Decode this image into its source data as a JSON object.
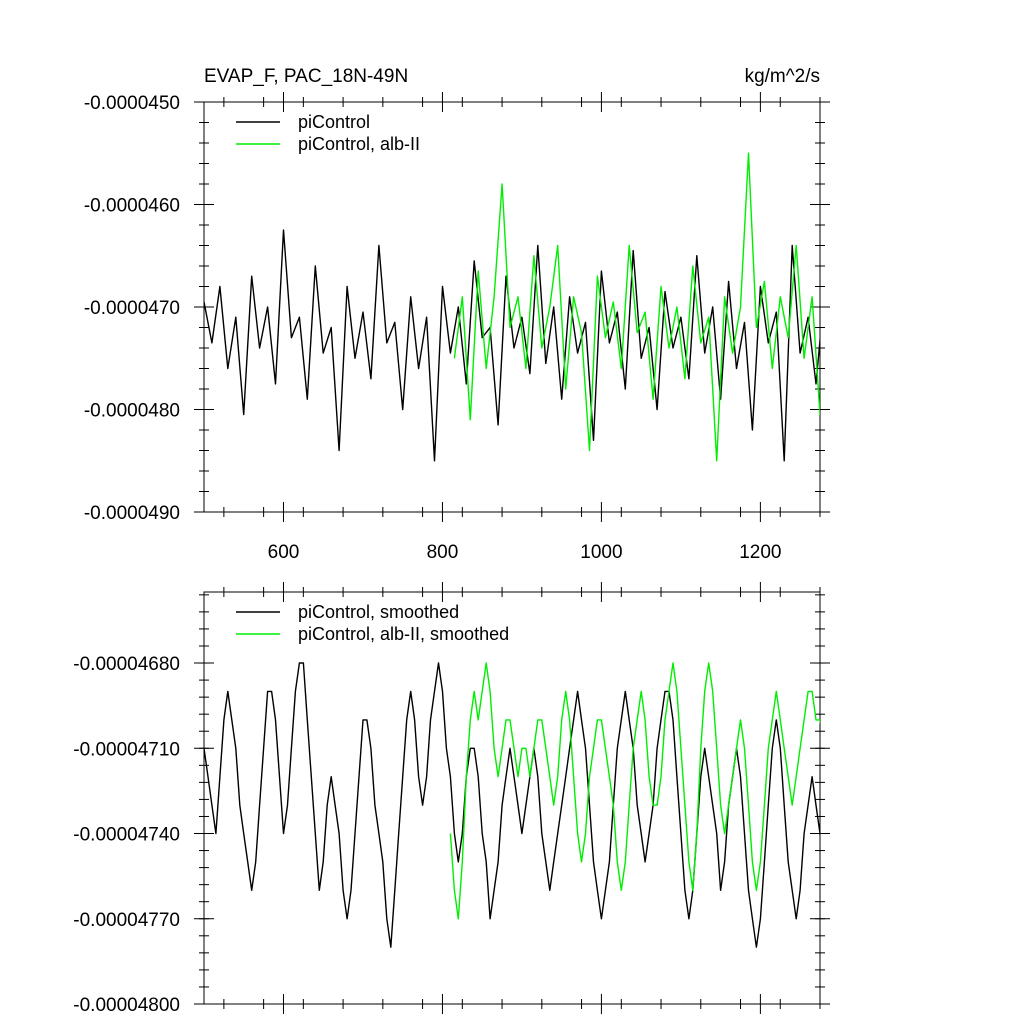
{
  "chart_data": [
    {
      "type": "line",
      "title": "EVAP_F, PAC_18N-49N",
      "units": "kg/m^2/s",
      "xlim": [
        500,
        1275
      ],
      "ylim": [
        -4.9e-05,
        -4.5e-05
      ],
      "x_ticks": [
        600,
        800,
        1000,
        1200
      ],
      "x_tick_labels": [
        "600",
        "800",
        "1000",
        "1200"
      ],
      "y_ticks": [
        -4.5e-05,
        -4.6e-05,
        -4.7e-05,
        -4.8e-05,
        -4.9e-05
      ],
      "y_tick_labels": [
        "-0.0000450",
        "-0.0000460",
        "-0.0000470",
        "-0.0000480",
        "-0.0000490"
      ],
      "legend_position": "top-left",
      "colors": {
        "piControl": "#000000",
        "alb": "#00ee00"
      },
      "series": [
        {
          "name": "piControl",
          "color": "#000000",
          "x_start": 500,
          "x_step": 10,
          "values": [
            -4.695e-05,
            -4.735e-05,
            -4.68e-05,
            -4.76e-05,
            -4.71e-05,
            -4.805e-05,
            -4.67e-05,
            -4.74e-05,
            -4.7e-05,
            -4.775e-05,
            -4.625e-05,
            -4.73e-05,
            -4.71e-05,
            -4.79e-05,
            -4.66e-05,
            -4.745e-05,
            -4.72e-05,
            -4.84e-05,
            -4.68e-05,
            -4.75e-05,
            -4.705e-05,
            -4.77e-05,
            -4.64e-05,
            -4.735e-05,
            -4.715e-05,
            -4.8e-05,
            -4.69e-05,
            -4.76e-05,
            -4.71e-05,
            -4.85e-05,
            -4.68e-05,
            -4.745e-05,
            -4.7e-05,
            -4.775e-05,
            -4.655e-05,
            -4.73e-05,
            -4.72e-05,
            -4.815e-05,
            -4.67e-05,
            -4.74e-05,
            -4.71e-05,
            -4.765e-05,
            -4.64e-05,
            -4.755e-05,
            -4.7e-05,
            -4.79e-05,
            -4.69e-05,
            -4.745e-05,
            -4.715e-05,
            -4.83e-05,
            -4.665e-05,
            -4.735e-05,
            -4.705e-05,
            -4.78e-05,
            -4.645e-05,
            -4.75e-05,
            -4.72e-05,
            -4.8e-05,
            -4.685e-05,
            -4.74e-05,
            -4.71e-05,
            -4.77e-05,
            -4.65e-05,
            -4.745e-05,
            -4.7e-05,
            -4.79e-05,
            -4.675e-05,
            -4.76e-05,
            -4.715e-05,
            -4.82e-05,
            -4.68e-05,
            -4.735e-05,
            -4.705e-05,
            -4.85e-05,
            -4.64e-05,
            -4.745e-05,
            -4.71e-05,
            -4.775e-05,
            -4.69e-05,
            -4.76e-05
          ]
        },
        {
          "name": "piControl, alb-II",
          "color": "#00ee00",
          "x_start": 815,
          "x_step": 10,
          "values": [
            -4.75e-05,
            -4.69e-05,
            -4.81e-05,
            -4.665e-05,
            -4.76e-05,
            -4.69e-05,
            -4.58e-05,
            -4.72e-05,
            -4.69e-05,
            -4.76e-05,
            -4.65e-05,
            -4.74e-05,
            -4.7e-05,
            -4.64e-05,
            -4.78e-05,
            -4.69e-05,
            -4.725e-05,
            -4.84e-05,
            -4.67e-05,
            -4.73e-05,
            -4.695e-05,
            -4.76e-05,
            -4.64e-05,
            -4.725e-05,
            -4.705e-05,
            -4.79e-05,
            -4.68e-05,
            -4.74e-05,
            -4.7e-05,
            -4.77e-05,
            -4.66e-05,
            -4.735e-05,
            -4.71e-05,
            -4.85e-05,
            -4.69e-05,
            -4.745e-05,
            -4.7e-05,
            -4.55e-05,
            -4.72e-05,
            -4.675e-05,
            -4.76e-05,
            -4.69e-05,
            -4.73e-05,
            -4.64e-05,
            -4.75e-05,
            -4.69e-05,
            -4.805e-05,
            -4.66e-05,
            -4.735e-05,
            -4.7e-05,
            -4.77e-05,
            -4.65e-05,
            -4.745e-05,
            -4.695e-05,
            -4.78e-05,
            -4.68e-05,
            -4.73e-05,
            -4.6e-05,
            -4.74e-05,
            -4.705e-05,
            -4.79e-05,
            -4.66e-05,
            -4.73e-05,
            -4.7e-05,
            -4.765e-05,
            -4.615e-05,
            -4.74e-05,
            -4.69e-05,
            -4.775e-05,
            -4.68e-05,
            -4.725e-05,
            -4.585e-05,
            -4.735e-05,
            -4.69e-05,
            -4.77e-05,
            -4.7e-05,
            -4.72e-05,
            -4.645e-05,
            -4.755e-05,
            -4.7e-05,
            -4.785e-05,
            -4.68e-05,
            -4.735e-05,
            -4.7e-05,
            -4.76e-05,
            -4.69e-05,
            -4.73e-05
          ]
        }
      ]
    },
    {
      "type": "line",
      "title": "",
      "xlim": [
        500,
        1275
      ],
      "ylim": [
        -4.8e-05,
        -4.655e-05
      ],
      "x_ticks": [
        600,
        800,
        1000,
        1200
      ],
      "y_ticks": [
        -4.68e-05,
        -4.71e-05,
        -4.74e-05,
        -4.77e-05,
        -4.8e-05
      ],
      "y_tick_labels": [
        "-0.00004680",
        "-0.00004710",
        "-0.00004740",
        "-0.00004770",
        "-0.00004800"
      ],
      "legend_position": "top-left",
      "series": [
        {
          "name": "piControl, smoothed",
          "color": "#000000",
          "x_start": 500,
          "x_step": 5,
          "values": [
            -4.71e-05,
            -4.72e-05,
            -4.73e-05,
            -4.74e-05,
            -4.72e-05,
            -4.7e-05,
            -4.69e-05,
            -4.7e-05,
            -4.71e-05,
            -4.73e-05,
            -4.74e-05,
            -4.75e-05,
            -4.76e-05,
            -4.75e-05,
            -4.73e-05,
            -4.71e-05,
            -4.69e-05,
            -4.69e-05,
            -4.7e-05,
            -4.72e-05,
            -4.74e-05,
            -4.73e-05,
            -4.71e-05,
            -4.69e-05,
            -4.68e-05,
            -4.68e-05,
            -4.7e-05,
            -4.72e-05,
            -4.74e-05,
            -4.76e-05,
            -4.75e-05,
            -4.73e-05,
            -4.72e-05,
            -4.73e-05,
            -4.74e-05,
            -4.76e-05,
            -4.77e-05,
            -4.76e-05,
            -4.74e-05,
            -4.72e-05,
            -4.7e-05,
            -4.7e-05,
            -4.71e-05,
            -4.73e-05,
            -4.74e-05,
            -4.75e-05,
            -4.77e-05,
            -4.78e-05,
            -4.76e-05,
            -4.74e-05,
            -4.72e-05,
            -4.7e-05,
            -4.69e-05,
            -4.7e-05,
            -4.72e-05,
            -4.73e-05,
            -4.72e-05,
            -4.7e-05,
            -4.69e-05,
            -4.68e-05,
            -4.69e-05,
            -4.71e-05,
            -4.72e-05,
            -4.74e-05,
            -4.75e-05,
            -4.74e-05,
            -4.72e-05,
            -4.71e-05,
            -4.71e-05,
            -4.72e-05,
            -4.74e-05,
            -4.75e-05,
            -4.77e-05,
            -4.76e-05,
            -4.75e-05,
            -4.73e-05,
            -4.72e-05,
            -4.71e-05,
            -4.72e-05,
            -4.73e-05,
            -4.74e-05,
            -4.73e-05,
            -4.72e-05,
            -4.71e-05,
            -4.72e-05,
            -4.74e-05,
            -4.75e-05,
            -4.76e-05,
            -4.75e-05,
            -4.74e-05,
            -4.73e-05,
            -4.72e-05,
            -4.71e-05,
            -4.7e-05,
            -4.69e-05,
            -4.7e-05,
            -4.71e-05,
            -4.73e-05,
            -4.75e-05,
            -4.76e-05,
            -4.77e-05,
            -4.76e-05,
            -4.75e-05,
            -4.73e-05,
            -4.71e-05,
            -4.7e-05,
            -4.69e-05,
            -4.7e-05,
            -4.71e-05,
            -4.73e-05,
            -4.74e-05,
            -4.75e-05,
            -4.74e-05,
            -4.73e-05,
            -4.71e-05,
            -4.7e-05,
            -4.69e-05,
            -4.69e-05,
            -4.7e-05,
            -4.72e-05,
            -4.74e-05,
            -4.76e-05,
            -4.77e-05,
            -4.76e-05,
            -4.74e-05,
            -4.72e-05,
            -4.71e-05,
            -4.72e-05,
            -4.73e-05,
            -4.74e-05,
            -4.76e-05,
            -4.75e-05,
            -4.73e-05,
            -4.72e-05,
            -4.71e-05,
            -4.72e-05,
            -4.74e-05,
            -4.76e-05,
            -4.77e-05,
            -4.78e-05,
            -4.77e-05,
            -4.75e-05,
            -4.73e-05,
            -4.71e-05,
            -4.7e-05,
            -4.71e-05,
            -4.73e-05,
            -4.75e-05,
            -4.76e-05,
            -4.77e-05,
            -4.76e-05,
            -4.74e-05,
            -4.73e-05,
            -4.72e-05,
            -4.73e-05,
            -4.74e-05,
            -4.76e-05,
            -4.75e-05,
            -4.74e-05,
            -4.72e-05,
            -4.71e-05,
            -4.7e-05,
            -4.69e-05,
            -4.7e-05,
            -4.71e-05,
            -4.73e-05,
            -4.74e-05,
            -4.75e-05,
            -4.74e-05,
            -4.72e-05,
            -4.71e-05,
            -4.69e-05,
            -4.68e-05,
            -4.69e-05,
            -4.71e-05,
            -4.73e-05,
            -4.74e-05,
            -4.75e-05,
            -4.76e-05,
            -4.74e-05,
            -4.73e-05,
            -4.72e-05,
            -4.72e-05,
            -4.71e-05,
            -4.7e-05
          ]
        },
        {
          "name": "piControl, alb-II, smoothed",
          "color": "#00ee00",
          "x_start": 810,
          "x_step": 5,
          "values": [
            -4.74e-05,
            -4.76e-05,
            -4.77e-05,
            -4.75e-05,
            -4.72e-05,
            -4.7e-05,
            -4.69e-05,
            -4.7e-05,
            -4.69e-05,
            -4.68e-05,
            -4.69e-05,
            -4.71e-05,
            -4.72e-05,
            -4.71e-05,
            -4.7e-05,
            -4.7e-05,
            -4.71e-05,
            -4.72e-05,
            -4.71e-05,
            -4.71e-05,
            -4.72e-05,
            -4.71e-05,
            -4.7e-05,
            -4.7e-05,
            -4.71e-05,
            -4.72e-05,
            -4.73e-05,
            -4.72e-05,
            -4.7e-05,
            -4.69e-05,
            -4.7e-05,
            -4.72e-05,
            -4.74e-05,
            -4.75e-05,
            -4.74e-05,
            -4.72e-05,
            -4.71e-05,
            -4.7e-05,
            -4.7e-05,
            -4.71e-05,
            -4.72e-05,
            -4.73e-05,
            -4.75e-05,
            -4.76e-05,
            -4.75e-05,
            -4.73e-05,
            -4.71e-05,
            -4.7e-05,
            -4.69e-05,
            -4.7e-05,
            -4.72e-05,
            -4.73e-05,
            -4.73e-05,
            -4.72e-05,
            -4.7e-05,
            -4.69e-05,
            -4.68e-05,
            -4.69e-05,
            -4.71e-05,
            -4.73e-05,
            -4.75e-05,
            -4.76e-05,
            -4.74e-05,
            -4.71e-05,
            -4.69e-05,
            -4.68e-05,
            -4.69e-05,
            -4.71e-05,
            -4.73e-05,
            -4.74e-05,
            -4.73e-05,
            -4.72e-05,
            -4.71e-05,
            -4.7e-05,
            -4.71e-05,
            -4.73e-05,
            -4.75e-05,
            -4.76e-05,
            -4.75e-05,
            -4.73e-05,
            -4.71e-05,
            -4.7e-05,
            -4.69e-05,
            -4.7e-05,
            -4.71e-05,
            -4.72e-05,
            -4.73e-05,
            -4.72e-05,
            -4.71e-05,
            -4.7e-05,
            -4.69e-05,
            -4.69e-05,
            -4.7e-05,
            -4.7e-05,
            -4.71e-05,
            -4.7e-05,
            -4.69e-05,
            -4.69e-05,
            -4.7e-05,
            -4.71e-05,
            -4.72e-05,
            -4.73e-05,
            -4.71e-05,
            -4.7e-05,
            -4.69e-05,
            -4.68e-05,
            -4.69e-05,
            -4.7e-05,
            -4.71e-05,
            -4.71e-05,
            -4.7e-05,
            -4.69e-05,
            -4.68e-05,
            -4.69e-05,
            -4.7e-05,
            -4.72e-05,
            -4.73e-05,
            -4.72e-05,
            -4.71e-05,
            -4.72e-05,
            -4.71e-05,
            -4.7e-05,
            -4.69e-05,
            -4.7e-05,
            -4.72e-05,
            -4.73e-05,
            -4.72e-05,
            -4.71e-05,
            -4.7e-05,
            -4.69e-05,
            -4.68e-05,
            -4.7e-05,
            -4.72e-05,
            -4.73e-05,
            -4.72e-05,
            -4.71e-05,
            -4.71e-05,
            -4.72e-05,
            -4.73e-05,
            -4.72e-05,
            -4.71e-05,
            -4.7e-05,
            -4.69e-05,
            -4.69e-05,
            -4.7e-05,
            -4.71e-05,
            -4.72e-05,
            -4.72e-05,
            -4.71e-05,
            -4.7e-05,
            -4.69e-05,
            -4.68e-05,
            -4.69e-05,
            -4.71e-05,
            -4.72e-05
          ]
        }
      ]
    }
  ]
}
